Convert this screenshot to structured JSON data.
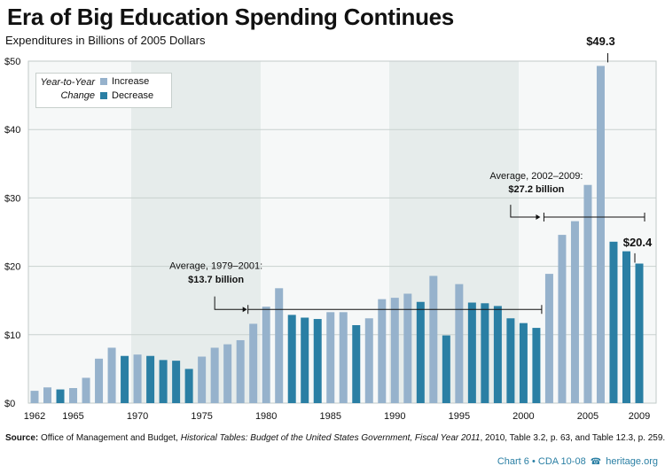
{
  "title": "Era of Big Education Spending Continues",
  "subtitle": "Expenditures in Billions of 2005 Dollars",
  "source_label": "Source:",
  "source_text": " Office of Management and Budget, ",
  "source_italic": "Historical Tables: Budget of the United States Government, Fiscal Year 2011",
  "source_tail": ", 2010, Table 3.2, p. 63, and Table 12.3, p. 259.",
  "credit": "Chart 6 • CDA 10-08",
  "credit_site": "heritage.org",
  "legend": {
    "title_line1": "Year-to-Year",
    "title_line2": "Change",
    "increase": "Increase",
    "decrease": "Decrease"
  },
  "colors": {
    "increase": "#96b2cc",
    "decrease": "#2a7fa4",
    "panel_light": "#f6f8f8",
    "panel_dark": "#e6eceb",
    "grid": "#c9d1cf"
  },
  "chart_data": {
    "type": "bar",
    "x": [
      1962,
      1963,
      1964,
      1965,
      1966,
      1967,
      1968,
      1969,
      1970,
      1971,
      1972,
      1973,
      1974,
      1975,
      1976,
      1977,
      1978,
      1979,
      1980,
      1981,
      1982,
      1983,
      1984,
      1985,
      1986,
      1987,
      1988,
      1989,
      1990,
      1991,
      1992,
      1993,
      1994,
      1995,
      1996,
      1997,
      1998,
      1999,
      2000,
      2001,
      2002,
      2003,
      2004,
      2005,
      2006,
      2007,
      2008,
      2009
    ],
    "values": [
      1.8,
      2.3,
      2.0,
      2.2,
      3.7,
      6.5,
      8.1,
      6.9,
      7.1,
      6.9,
      6.3,
      6.2,
      5.0,
      6.8,
      8.1,
      8.6,
      9.2,
      11.6,
      14.1,
      16.8,
      12.9,
      12.5,
      12.3,
      13.3,
      13.3,
      11.4,
      12.4,
      15.2,
      15.4,
      16.0,
      14.8,
      18.6,
      9.9,
      17.4,
      14.7,
      14.6,
      14.2,
      12.4,
      11.7,
      11.0,
      18.9,
      24.6,
      26.6,
      31.9,
      49.3,
      23.6,
      22.2,
      20.4
    ],
    "change": [
      "i",
      "i",
      "d",
      "i",
      "i",
      "i",
      "i",
      "d",
      "i",
      "d",
      "d",
      "d",
      "d",
      "i",
      "i",
      "i",
      "i",
      "i",
      "i",
      "i",
      "d",
      "d",
      "d",
      "i",
      "i",
      "d",
      "i",
      "i",
      "i",
      "i",
      "d",
      "i",
      "d",
      "i",
      "d",
      "d",
      "d",
      "d",
      "d",
      "d",
      "i",
      "i",
      "i",
      "i",
      "i",
      "d",
      "d",
      "d"
    ],
    "xticks": [
      "1962",
      "1965",
      "1970",
      "1975",
      "1980",
      "1985",
      "1990",
      "1995",
      "2000",
      "2005",
      "2009"
    ],
    "yticks": [
      "$0",
      "$10",
      "$20",
      "$30",
      "$40",
      "$50"
    ],
    "ylim": [
      0,
      50
    ],
    "annotations": {
      "avg1_label": "Average, 1979–2001:",
      "avg1_value": "$13.7 billion",
      "avg1": 13.7,
      "avg1_range": [
        1979,
        2001
      ],
      "avg2_label": "Average, 2002–2009:",
      "avg2_value": "$27.2 billion",
      "avg2": 27.2,
      "avg2_range": [
        2002,
        2009
      ],
      "peak_label": "$49.3",
      "last_label": "$20.4"
    }
  }
}
